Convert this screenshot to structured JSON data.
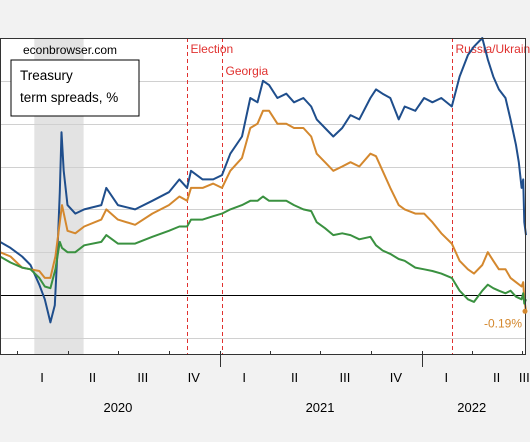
{
  "chart_data": {
    "type": "line",
    "watermark": "econbrowser.com",
    "title_lines": [
      "Treasury",
      "term spreads, %"
    ],
    "x_range": [
      "2019-12-01",
      "2022-07-08"
    ],
    "ylim": [
      -0.7,
      3.0
    ],
    "zero_line": 0,
    "quarter_labels": [
      {
        "label": "I",
        "date": "2020-02-15"
      },
      {
        "label": "II",
        "date": "2020-05-16"
      },
      {
        "label": "III",
        "date": "2020-08-15"
      },
      {
        "label": "IV",
        "date": "2020-11-15"
      },
      {
        "label": "I",
        "date": "2021-02-14"
      },
      {
        "label": "II",
        "date": "2021-05-16"
      },
      {
        "label": "III",
        "date": "2021-08-15"
      },
      {
        "label": "IV",
        "date": "2021-11-15"
      },
      {
        "label": "I",
        "date": "2022-02-14"
      },
      {
        "label": "II",
        "date": "2022-05-16"
      },
      {
        "label": "III",
        "date": "2022-07-05"
      }
    ],
    "quarter_ticks": [
      "2020-01-01",
      "2020-04-01",
      "2020-07-01",
      "2020-10-01",
      "2021-01-01",
      "2021-04-01",
      "2021-07-01",
      "2021-10-01",
      "2022-01-01",
      "2022-04-01",
      "2022-07-01"
    ],
    "year_labels": [
      {
        "label": "2020",
        "date": "2020-07-01"
      },
      {
        "label": "2021",
        "date": "2021-07-01"
      },
      {
        "label": "2022",
        "date": "2022-04-01"
      }
    ],
    "recession_shading": {
      "start": "2020-02-01",
      "end": "2020-04-30",
      "color": "#e3e3e3"
    },
    "events": [
      {
        "label": "Election",
        "date": "2020-11-03",
        "label_row": 1
      },
      {
        "label": "Georgia",
        "date": "2021-01-05",
        "label_row": 2
      },
      {
        "label": "Russia/Ukraine",
        "date": "2022-02-24",
        "label_row": 1
      }
    ],
    "end_annotation": {
      "text": "-0.19%",
      "date": "2022-07-08",
      "value": -0.19,
      "color": "#d4882e"
    },
    "series": [
      {
        "color": "#1f4e8c",
        "points": [
          [
            "2019-12-01",
            0.62
          ],
          [
            "2019-12-20",
            0.55
          ],
          [
            "2020-01-10",
            0.45
          ],
          [
            "2020-01-25",
            0.35
          ],
          [
            "2020-02-10",
            0.12
          ],
          [
            "2020-02-20",
            -0.05
          ],
          [
            "2020-03-01",
            -0.32
          ],
          [
            "2020-03-09",
            -0.12
          ],
          [
            "2020-03-14",
            0.55
          ],
          [
            "2020-03-18",
            1.2
          ],
          [
            "2020-03-21",
            1.9
          ],
          [
            "2020-03-25",
            1.45
          ],
          [
            "2020-04-01",
            1.05
          ],
          [
            "2020-04-15",
            0.95
          ],
          [
            "2020-05-01",
            1.0
          ],
          [
            "2020-06-01",
            1.05
          ],
          [
            "2020-06-10",
            1.25
          ],
          [
            "2020-07-01",
            1.05
          ],
          [
            "2020-08-01",
            1.0
          ],
          [
            "2020-09-01",
            1.1
          ],
          [
            "2020-10-01",
            1.2
          ],
          [
            "2020-10-20",
            1.35
          ],
          [
            "2020-11-03",
            1.25
          ],
          [
            "2020-11-10",
            1.45
          ],
          [
            "2020-12-01",
            1.35
          ],
          [
            "2020-12-20",
            1.35
          ],
          [
            "2021-01-05",
            1.4
          ],
          [
            "2021-01-20",
            1.65
          ],
          [
            "2021-02-10",
            1.85
          ],
          [
            "2021-02-25",
            2.3
          ],
          [
            "2021-03-10",
            2.25
          ],
          [
            "2021-03-20",
            2.5
          ],
          [
            "2021-03-31",
            2.45
          ],
          [
            "2021-04-15",
            2.3
          ],
          [
            "2021-05-01",
            2.35
          ],
          [
            "2021-05-15",
            2.25
          ],
          [
            "2021-06-01",
            2.3
          ],
          [
            "2021-06-15",
            2.2
          ],
          [
            "2021-06-25",
            2.05
          ],
          [
            "2021-07-10",
            1.95
          ],
          [
            "2021-07-25",
            1.85
          ],
          [
            "2021-08-10",
            1.95
          ],
          [
            "2021-08-25",
            2.1
          ],
          [
            "2021-09-10",
            2.05
          ],
          [
            "2021-09-30",
            2.3
          ],
          [
            "2021-10-10",
            2.4
          ],
          [
            "2021-10-22",
            2.35
          ],
          [
            "2021-11-05",
            2.3
          ],
          [
            "2021-11-20",
            2.05
          ],
          [
            "2021-12-01",
            2.2
          ],
          [
            "2021-12-20",
            2.15
          ],
          [
            "2022-01-05",
            2.3
          ],
          [
            "2022-01-20",
            2.25
          ],
          [
            "2022-02-05",
            2.3
          ],
          [
            "2022-02-24",
            2.2
          ],
          [
            "2022-03-10",
            2.55
          ],
          [
            "2022-03-25",
            2.8
          ],
          [
            "2022-04-05",
            2.9
          ],
          [
            "2022-04-20",
            3.0
          ],
          [
            "2022-04-30",
            2.75
          ],
          [
            "2022-05-10",
            2.55
          ],
          [
            "2022-05-20",
            2.4
          ],
          [
            "2022-06-01",
            2.3
          ],
          [
            "2022-06-10",
            2.05
          ],
          [
            "2022-06-20",
            1.75
          ],
          [
            "2022-06-25",
            1.55
          ],
          [
            "2022-06-30",
            1.25
          ],
          [
            "2022-07-03",
            1.35
          ],
          [
            "2022-07-05",
            0.85
          ],
          [
            "2022-07-08",
            0.7
          ]
        ]
      },
      {
        "color": "#d4882e",
        "points": [
          [
            "2019-12-01",
            0.5
          ],
          [
            "2019-12-20",
            0.45
          ],
          [
            "2020-01-10",
            0.32
          ],
          [
            "2020-01-25",
            0.3
          ],
          [
            "2020-02-10",
            0.28
          ],
          [
            "2020-02-20",
            0.2
          ],
          [
            "2020-03-01",
            0.2
          ],
          [
            "2020-03-10",
            0.45
          ],
          [
            "2020-03-18",
            0.85
          ],
          [
            "2020-03-22",
            1.05
          ],
          [
            "2020-04-01",
            0.75
          ],
          [
            "2020-04-15",
            0.72
          ],
          [
            "2020-05-01",
            0.8
          ],
          [
            "2020-06-01",
            0.88
          ],
          [
            "2020-06-10",
            1.0
          ],
          [
            "2020-07-01",
            0.88
          ],
          [
            "2020-08-01",
            0.82
          ],
          [
            "2020-09-01",
            0.95
          ],
          [
            "2020-10-01",
            1.05
          ],
          [
            "2020-10-20",
            1.15
          ],
          [
            "2020-11-03",
            1.1
          ],
          [
            "2020-11-10",
            1.25
          ],
          [
            "2020-12-01",
            1.25
          ],
          [
            "2020-12-20",
            1.3
          ],
          [
            "2021-01-05",
            1.25
          ],
          [
            "2021-01-20",
            1.45
          ],
          [
            "2021-02-10",
            1.6
          ],
          [
            "2021-02-25",
            1.95
          ],
          [
            "2021-03-10",
            2.0
          ],
          [
            "2021-03-20",
            2.15
          ],
          [
            "2021-03-31",
            2.15
          ],
          [
            "2021-04-15",
            2.0
          ],
          [
            "2021-05-01",
            2.0
          ],
          [
            "2021-05-15",
            1.95
          ],
          [
            "2021-06-01",
            1.95
          ],
          [
            "2021-06-15",
            1.85
          ],
          [
            "2021-06-25",
            1.65
          ],
          [
            "2021-07-10",
            1.55
          ],
          [
            "2021-07-25",
            1.45
          ],
          [
            "2021-08-10",
            1.5
          ],
          [
            "2021-08-25",
            1.55
          ],
          [
            "2021-09-10",
            1.5
          ],
          [
            "2021-09-30",
            1.65
          ],
          [
            "2021-10-10",
            1.62
          ],
          [
            "2021-10-22",
            1.45
          ],
          [
            "2021-11-05",
            1.25
          ],
          [
            "2021-11-20",
            1.05
          ],
          [
            "2021-12-01",
            1.0
          ],
          [
            "2021-12-20",
            0.95
          ],
          [
            "2022-01-05",
            0.95
          ],
          [
            "2022-01-20",
            0.85
          ],
          [
            "2022-02-05",
            0.72
          ],
          [
            "2022-02-24",
            0.6
          ],
          [
            "2022-03-10",
            0.4
          ],
          [
            "2022-03-25",
            0.3
          ],
          [
            "2022-04-05",
            0.25
          ],
          [
            "2022-04-20",
            0.35
          ],
          [
            "2022-04-30",
            0.5
          ],
          [
            "2022-05-10",
            0.4
          ],
          [
            "2022-05-20",
            0.3
          ],
          [
            "2022-06-01",
            0.3
          ],
          [
            "2022-06-10",
            0.2
          ],
          [
            "2022-06-20",
            0.15
          ],
          [
            "2022-06-30",
            0.1
          ],
          [
            "2022-07-03",
            0.15
          ],
          [
            "2022-07-05",
            -0.05
          ],
          [
            "2022-07-08",
            -0.19
          ]
        ]
      },
      {
        "color": "#3a9140",
        "points": [
          [
            "2019-12-01",
            0.45
          ],
          [
            "2019-12-20",
            0.38
          ],
          [
            "2020-01-10",
            0.32
          ],
          [
            "2020-01-25",
            0.3
          ],
          [
            "2020-02-10",
            0.2
          ],
          [
            "2020-02-20",
            0.1
          ],
          [
            "2020-03-01",
            0.08
          ],
          [
            "2020-03-10",
            0.3
          ],
          [
            "2020-03-18",
            0.62
          ],
          [
            "2020-03-22",
            0.55
          ],
          [
            "2020-04-01",
            0.5
          ],
          [
            "2020-04-15",
            0.5
          ],
          [
            "2020-05-01",
            0.58
          ],
          [
            "2020-06-01",
            0.62
          ],
          [
            "2020-06-10",
            0.7
          ],
          [
            "2020-07-01",
            0.6
          ],
          [
            "2020-08-01",
            0.6
          ],
          [
            "2020-09-01",
            0.68
          ],
          [
            "2020-10-01",
            0.75
          ],
          [
            "2020-10-20",
            0.8
          ],
          [
            "2020-11-03",
            0.8
          ],
          [
            "2020-11-10",
            0.88
          ],
          [
            "2020-12-01",
            0.88
          ],
          [
            "2020-12-20",
            0.92
          ],
          [
            "2021-01-05",
            0.95
          ],
          [
            "2021-01-20",
            1.0
          ],
          [
            "2021-02-10",
            1.05
          ],
          [
            "2021-02-25",
            1.1
          ],
          [
            "2021-03-10",
            1.1
          ],
          [
            "2021-03-20",
            1.15
          ],
          [
            "2021-03-31",
            1.1
          ],
          [
            "2021-04-15",
            1.1
          ],
          [
            "2021-05-01",
            1.1
          ],
          [
            "2021-05-15",
            1.05
          ],
          [
            "2021-06-01",
            1.0
          ],
          [
            "2021-06-15",
            0.98
          ],
          [
            "2021-06-25",
            0.85
          ],
          [
            "2021-07-10",
            0.78
          ],
          [
            "2021-07-25",
            0.7
          ],
          [
            "2021-08-10",
            0.72
          ],
          [
            "2021-08-25",
            0.7
          ],
          [
            "2021-09-10",
            0.65
          ],
          [
            "2021-09-30",
            0.68
          ],
          [
            "2021-10-10",
            0.58
          ],
          [
            "2021-10-22",
            0.52
          ],
          [
            "2021-11-05",
            0.48
          ],
          [
            "2021-11-20",
            0.42
          ],
          [
            "2021-12-01",
            0.4
          ],
          [
            "2021-12-20",
            0.32
          ],
          [
            "2022-01-05",
            0.3
          ],
          [
            "2022-01-20",
            0.28
          ],
          [
            "2022-02-05",
            0.25
          ],
          [
            "2022-02-24",
            0.2
          ],
          [
            "2022-03-10",
            0.05
          ],
          [
            "2022-03-25",
            -0.05
          ],
          [
            "2022-04-05",
            -0.08
          ],
          [
            "2022-04-20",
            0.05
          ],
          [
            "2022-04-30",
            0.12
          ],
          [
            "2022-05-10",
            0.08
          ],
          [
            "2022-05-20",
            0.05
          ],
          [
            "2022-06-01",
            0.02
          ],
          [
            "2022-06-10",
            0.05
          ],
          [
            "2022-06-20",
            -0.02
          ],
          [
            "2022-06-30",
            -0.05
          ],
          [
            "2022-07-03",
            0.02
          ],
          [
            "2022-07-05",
            -0.1
          ],
          [
            "2022-07-08",
            -0.05
          ]
        ]
      }
    ]
  }
}
